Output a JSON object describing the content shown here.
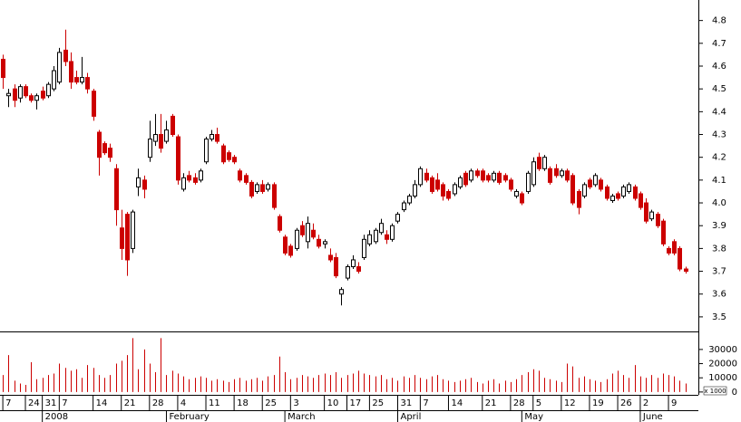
{
  "chart_data": {
    "type": "candlestick",
    "up_color": "#ffffff",
    "down_color": "#cc0000",
    "volume_color": "#cc0000",
    "open": [
      4.63,
      4.47,
      4.5,
      4.46,
      4.51,
      4.47,
      4.45,
      4.49,
      4.47,
      4.5,
      4.53,
      4.67,
      4.62,
      4.55,
      4.53,
      4.55,
      4.49,
      4.31,
      4.26,
      4.24,
      4.15,
      3.89,
      3.95,
      3.8,
      4.07,
      4.1,
      4.2,
      4.27,
      4.3,
      4.27,
      4.38,
      4.29,
      4.06,
      4.12,
      4.11,
      4.1,
      4.18,
      4.28,
      4.3,
      4.25,
      4.22,
      4.2,
      4.14,
      4.12,
      4.09,
      4.05,
      4.08,
      4.06,
      4.08,
      3.94,
      3.85,
      3.81,
      3.8,
      3.9,
      3.83,
      3.88,
      3.84,
      3.82,
      3.77,
      3.76,
      3.6,
      3.67,
      3.72,
      3.72,
      3.76,
      3.82,
      3.83,
      3.87,
      3.86,
      3.84,
      3.92,
      3.97,
      4.0,
      4.03,
      4.08,
      4.13,
      4.11,
      4.1,
      4.08,
      4.05,
      4.04,
      4.07,
      4.13,
      4.1,
      4.14,
      4.14,
      4.12,
      4.1,
      4.13,
      4.12,
      4.1,
      4.03,
      4.04,
      4.05,
      4.08,
      4.2,
      4.15,
      4.15,
      4.15,
      4.12,
      4.14,
      4.12,
      4.05,
      4.03,
      4.1,
      4.08,
      4.1,
      4.07,
      4.01,
      4.04,
      4.03,
      4.05,
      4.07,
      4.04,
      4.0,
      3.93,
      3.95,
      3.92,
      3.8,
      3.83,
      3.8,
      3.71
    ],
    "high": [
      4.65,
      4.5,
      4.52,
      4.52,
      4.52,
      4.48,
      4.48,
      4.51,
      4.53,
      4.6,
      4.68,
      4.76,
      4.66,
      4.58,
      4.64,
      4.57,
      4.5,
      4.32,
      4.27,
      4.26,
      4.17,
      3.97,
      3.96,
      3.97,
      4.15,
      4.12,
      4.36,
      4.39,
      4.39,
      4.36,
      4.39,
      4.3,
      4.13,
      4.14,
      4.13,
      4.15,
      4.29,
      4.32,
      4.33,
      4.26,
      4.23,
      4.21,
      4.15,
      4.13,
      4.1,
      4.09,
      4.1,
      4.09,
      4.09,
      3.95,
      3.86,
      3.82,
      3.89,
      3.92,
      3.94,
      3.91,
      3.86,
      3.84,
      3.8,
      3.78,
      3.63,
      3.73,
      3.77,
      3.74,
      3.86,
      3.88,
      3.89,
      3.93,
      3.88,
      3.91,
      3.96,
      4.01,
      4.04,
      4.1,
      4.16,
      4.15,
      4.12,
      4.13,
      4.09,
      4.06,
      4.09,
      4.12,
      4.14,
      4.15,
      4.15,
      4.15,
      4.13,
      4.14,
      4.14,
      4.13,
      4.11,
      4.06,
      4.05,
      4.14,
      4.2,
      4.22,
      4.21,
      4.16,
      4.17,
      4.15,
      4.15,
      4.13,
      4.06,
      4.09,
      4.11,
      4.13,
      4.11,
      4.08,
      4.04,
      4.05,
      4.08,
      4.09,
      4.08,
      4.05,
      4.02,
      3.97,
      3.96,
      3.93,
      3.81,
      3.84,
      3.81,
      3.72
    ],
    "low": [
      4.5,
      4.42,
      4.42,
      4.44,
      4.46,
      4.44,
      4.41,
      4.45,
      4.46,
      4.49,
      4.52,
      4.6,
      4.5,
      4.52,
      4.52,
      4.48,
      4.36,
      4.12,
      4.21,
      4.18,
      3.9,
      3.75,
      3.68,
      3.78,
      4.03,
      4.02,
      4.18,
      4.25,
      4.22,
      4.26,
      4.29,
      4.08,
      4.05,
      4.09,
      4.08,
      4.09,
      4.17,
      4.27,
      4.26,
      4.17,
      4.18,
      4.17,
      4.09,
      4.08,
      4.02,
      4.04,
      4.04,
      4.05,
      3.97,
      3.87,
      3.77,
      3.76,
      3.79,
      3.85,
      3.8,
      3.84,
      3.8,
      3.8,
      3.74,
      3.67,
      3.55,
      3.66,
      3.71,
      3.69,
      3.75,
      3.81,
      3.82,
      3.86,
      3.82,
      3.83,
      3.91,
      3.96,
      3.99,
      4.02,
      4.07,
      4.09,
      4.04,
      4.05,
      4.01,
      4.01,
      4.03,
      4.06,
      4.07,
      4.09,
      4.11,
      4.09,
      4.09,
      4.09,
      4.08,
      4.09,
      4.05,
      4.02,
      3.99,
      4.04,
      4.07,
      4.14,
      4.14,
      4.08,
      4.11,
      4.11,
      4.09,
      3.99,
      3.95,
      4.02,
      4.06,
      4.07,
      4.05,
      4.01,
      4.0,
      4.01,
      4.02,
      4.04,
      4.01,
      3.97,
      3.91,
      3.92,
      3.89,
      3.81,
      3.77,
      3.77,
      3.7,
      3.69
    ],
    "close": [
      4.55,
      4.48,
      4.45,
      4.51,
      4.47,
      4.45,
      4.47,
      4.46,
      4.52,
      4.58,
      4.66,
      4.62,
      4.53,
      4.53,
      4.55,
      4.5,
      4.38,
      4.2,
      4.22,
      4.2,
      3.97,
      3.8,
      3.75,
      3.96,
      4.11,
      4.06,
      4.28,
      4.3,
      4.24,
      4.32,
      4.3,
      4.1,
      4.11,
      4.1,
      4.09,
      4.14,
      4.28,
      4.3,
      4.27,
      4.18,
      4.19,
      4.18,
      4.1,
      4.09,
      4.03,
      4.08,
      4.05,
      4.08,
      3.98,
      3.88,
      3.78,
      3.77,
      3.88,
      3.86,
      3.91,
      3.85,
      3.81,
      3.83,
      3.75,
      3.68,
      3.62,
      3.72,
      3.75,
      3.7,
      3.84,
      3.86,
      3.88,
      3.91,
      3.84,
      3.9,
      3.95,
      4.0,
      4.03,
      4.08,
      4.15,
      4.1,
      4.05,
      4.06,
      4.03,
      4.02,
      4.08,
      4.11,
      4.08,
      4.14,
      4.12,
      4.1,
      4.1,
      4.13,
      4.09,
      4.1,
      4.06,
      4.05,
      4.0,
      4.13,
      4.18,
      4.15,
      4.2,
      4.09,
      4.12,
      4.14,
      4.1,
      4.0,
      3.98,
      4.08,
      4.07,
      4.12,
      4.06,
      4.02,
      4.03,
      4.02,
      4.07,
      4.08,
      4.02,
      3.98,
      3.92,
      3.96,
      3.9,
      3.82,
      3.78,
      3.78,
      3.71,
      3.7
    ],
    "volume": [
      12000,
      26000,
      8000,
      6000,
      5000,
      21000,
      9000,
      10000,
      12000,
      13000,
      20000,
      17000,
      15000,
      16000,
      10000,
      19000,
      17000,
      12000,
      10000,
      12000,
      20000,
      22000,
      26000,
      38000,
      16000,
      30000,
      20000,
      14000,
      38000,
      12000,
      15000,
      13000,
      11000,
      9000,
      10000,
      11000,
      10000,
      8000,
      9000,
      8000,
      7000,
      9000,
      10000,
      8000,
      9000,
      10000,
      8000,
      11000,
      12000,
      25000,
      14000,
      9000,
      10000,
      12000,
      11000,
      10000,
      12000,
      13000,
      12000,
      14000,
      10000,
      12000,
      13000,
      15000,
      13000,
      12000,
      11000,
      12000,
      9000,
      10000,
      8000,
      11000,
      10000,
      12000,
      10000,
      9000,
      11000,
      12000,
      9000,
      8000,
      7000,
      8000,
      9000,
      10000,
      7000,
      6000,
      8000,
      9000,
      6000,
      8000,
      7000,
      9000,
      12000,
      14000,
      16000,
      15000,
      10000,
      9000,
      8000,
      7000,
      20000,
      18000,
      10000,
      11000,
      9000,
      8000,
      7000,
      9000,
      13000,
      15000,
      12000,
      10000,
      19000,
      11000,
      10000,
      12000,
      10000,
      13000,
      12000,
      11000,
      8000,
      6000
    ],
    "xlim": [
      -0.5,
      123.3
    ],
    "ylim": [
      3.44,
      4.89
    ],
    "yticks": [
      3.5,
      3.6,
      3.7,
      3.8,
      3.9,
      {
        "value": 4,
        "label": "4.0"
      },
      4.1,
      4.2,
      4.3,
      4.4,
      4.5,
      4.6,
      4.7,
      4.8
    ],
    "volume_ylim": [
      -2000,
      42700
    ],
    "volume_yticks": [
      0,
      10000,
      20000,
      30000
    ],
    "volume_unit_label": "x 1000",
    "xticks": [
      {
        "value": 0,
        "label": "7"
      },
      {
        "value": 4,
        "label": "24"
      },
      {
        "value": 7,
        "label": "31"
      },
      {
        "value": 10,
        "label": "7"
      },
      {
        "value": 16,
        "label": "14"
      },
      {
        "value": 21,
        "label": "21"
      },
      {
        "value": 26,
        "label": "28"
      },
      {
        "value": 31,
        "label": "4"
      },
      {
        "value": 36,
        "label": "11"
      },
      {
        "value": 41,
        "label": "18"
      },
      {
        "value": 46,
        "label": "25"
      },
      {
        "value": 51,
        "label": "3"
      },
      {
        "value": 57,
        "label": "10"
      },
      {
        "value": 61,
        "label": "17"
      },
      {
        "value": 65,
        "label": "25"
      },
      {
        "value": 70,
        "label": "31"
      },
      {
        "value": 74,
        "label": "7"
      },
      {
        "value": 79,
        "label": "14"
      },
      {
        "value": 85,
        "label": "21"
      },
      {
        "value": 90,
        "label": "28"
      },
      {
        "value": 94,
        "label": "5"
      },
      {
        "value": 99,
        "label": "12"
      },
      {
        "value": 104,
        "label": "19"
      },
      {
        "value": 109,
        "label": "26"
      },
      {
        "value": 113,
        "label": "2"
      },
      {
        "value": 118,
        "label": "9"
      }
    ],
    "month_ticks": [
      {
        "value": 7,
        "label": "2008"
      },
      {
        "value": 29,
        "label": "February"
      },
      {
        "value": 50,
        "label": "March"
      },
      {
        "value": 70,
        "label": "April"
      },
      {
        "value": 92,
        "label": "May"
      },
      {
        "value": 113,
        "label": "June"
      }
    ]
  }
}
